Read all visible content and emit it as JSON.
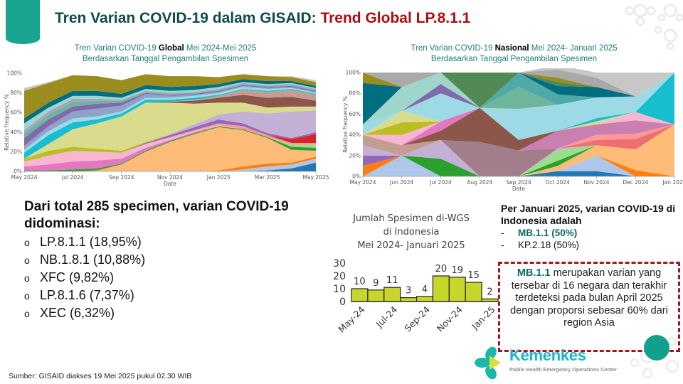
{
  "header": {
    "title_part1": "Tren Varian COVID-19 dalam GISAID: ",
    "title_part2": "Trend Global LP.8.1.1"
  },
  "global_chart": {
    "caption_pre": "Tren Varian COVID-19 ",
    "caption_bold": "Global",
    "caption_post": " Mei 2024-Mei 2025",
    "caption_line2": "Berdasarkan Tanggal Pengambilan Spesimen",
    "ylabel": "Relative frequency %",
    "xlabel": "Date",
    "yticks": [
      "0%",
      "20%",
      "40%",
      "60%",
      "80%",
      "100%"
    ],
    "xticks": [
      "May 2024",
      "Jul 2024",
      "Sep 2024",
      "Nov 2024",
      "Jan 2025",
      "Mar 2025",
      "May 2025"
    ]
  },
  "national_chart": {
    "caption_pre": "Tren Varian COVID-19 ",
    "caption_bold": "Nasional",
    "caption_post": " Mei 2024- Januari 2025",
    "caption_line2": "Berdasarkan Tanggal Pengambilan Spesimen",
    "ylabel": "Relative frequency %",
    "xlabel": "Date",
    "yticks": [
      "0%",
      "20%",
      "40%",
      "60%",
      "80%",
      "100%"
    ],
    "xticks": [
      "May 2024",
      "Jun 2024",
      "Jul 2024",
      "Aug 2024",
      "Sep 2024",
      "Oct 2024",
      "Nov 2024",
      "Dec 2024",
      "Jan 2025"
    ]
  },
  "summary": {
    "lead": "Dari total 285 specimen, varian COVID-19 didominasi:",
    "bullet": "o",
    "items": [
      "LP.8.1.1 (18,95%)",
      "NB.1.8.1 (10,88%)",
      "XFC (9,82%)",
      "LP.8.1.6 (7,37%)",
      "XEC (6,32%)"
    ]
  },
  "per_januari": {
    "lead": "Per Januari 2025, varian COVID-19 di Indonesia adalah",
    "dash": "-",
    "items": [
      {
        "label": "MB.1.1 (50%)",
        "highlight": true
      },
      {
        "label": "KP.2.18 (50%)",
        "highlight": false
      }
    ]
  },
  "infobox": {
    "highlight": "MB.1.1",
    "text": " merupakan varian yang tersebar di 16 negara dan terakhir terdeteksi pada bulan April 2025 dengan proporsi sebesar 60% dari region Asia"
  },
  "logo": {
    "brand": "Kemenkes",
    "subtitle": "Public Health Emergency Operations Center"
  },
  "source": "Sumber: GISAID diakses 19 Mei 2025 pukul 02.30 WIB",
  "colors": {
    "accent_teal": "#1aa591",
    "title_dark": "#114a4a",
    "title_red": "#b00b12",
    "caption_teal": "#1e7d7a",
    "bar_fill": "#c8d62b",
    "dashed_border": "#a3151e",
    "highlight_green": "#116b5e"
  },
  "chart_data": [
    {
      "type": "area",
      "title": "Tren Varian COVID-19 Global Mei 2024-Mei 2025",
      "xlabel": "Date",
      "ylabel": "Relative frequency %",
      "ylim": [
        0,
        100
      ],
      "stacked": true,
      "x": [
        "May 2024",
        "Jun 2024",
        "Jul 2024",
        "Aug 2024",
        "Sep 2024",
        "Oct 2024",
        "Nov 2024",
        "Dec 2024",
        "Jan 2025",
        "Feb 2025",
        "Mar 2025",
        "Apr 2025",
        "May 2025"
      ],
      "series": [
        {
          "name": "series-1",
          "color": "#1f77b4",
          "values": [
            0,
            0,
            0,
            0,
            0,
            0,
            0,
            0,
            0,
            0,
            1,
            3,
            9
          ]
        },
        {
          "name": "series-2",
          "color": "#aec7e8",
          "values": [
            0,
            0,
            0,
            0,
            0,
            0,
            0,
            0,
            0,
            2,
            4,
            4,
            4
          ]
        },
        {
          "name": "series-3",
          "color": "#ff7f0e",
          "values": [
            0,
            0,
            0,
            0,
            0,
            0,
            0,
            0,
            1,
            3,
            3,
            2,
            2
          ]
        },
        {
          "name": "series-4",
          "color": "#ffbb78",
          "values": [
            0,
            0,
            0,
            1,
            7,
            20,
            30,
            38,
            44,
            37,
            26,
            13,
            6
          ]
        },
        {
          "name": "series-5",
          "color": "#2ca02c",
          "values": [
            1,
            1,
            2,
            2,
            1,
            1,
            1,
            1,
            1,
            1,
            1,
            3,
            3
          ]
        },
        {
          "name": "series-6",
          "color": "#98df8a",
          "values": [
            0,
            0,
            0,
            0,
            0,
            0,
            0,
            0,
            0,
            0,
            0,
            2,
            3
          ]
        },
        {
          "name": "series-7",
          "color": "#e377c2",
          "values": [
            4,
            6,
            8,
            8,
            5,
            3,
            1,
            1,
            0,
            0,
            0,
            0,
            0
          ]
        },
        {
          "name": "series-8",
          "color": "#f7b6d2",
          "values": [
            5,
            9,
            11,
            9,
            6,
            4,
            2,
            1,
            1,
            0,
            0,
            0,
            0
          ]
        },
        {
          "name": "series-9",
          "color": "#ff9896",
          "values": [
            0,
            0,
            0,
            0,
            0,
            0,
            1,
            1,
            2,
            3,
            2,
            2,
            2
          ]
        },
        {
          "name": "series-10",
          "color": "#d62728",
          "values": [
            0,
            0,
            0,
            0,
            0,
            0,
            0,
            0,
            0,
            0,
            0,
            4,
            9
          ]
        },
        {
          "name": "series-11",
          "color": "#9467bd",
          "values": [
            0,
            0,
            0,
            0,
            0,
            1,
            2,
            3,
            4,
            3,
            2,
            1,
            2
          ]
        },
        {
          "name": "series-12",
          "color": "#c5b0d5",
          "values": [
            0,
            0,
            0,
            0,
            0,
            0,
            1,
            3,
            5,
            12,
            20,
            27,
            22
          ]
        },
        {
          "name": "series-13",
          "color": "#bcbd22",
          "values": [
            3,
            5,
            4,
            3,
            2,
            1,
            0,
            0,
            0,
            0,
            0,
            0,
            0
          ]
        },
        {
          "name": "series-14",
          "color": "#dbdb8d",
          "values": [
            0,
            7,
            18,
            26,
            35,
            40,
            32,
            21,
            12,
            9,
            6,
            5,
            4
          ]
        },
        {
          "name": "series-15",
          "color": "#8c564b",
          "values": [
            0,
            0,
            0,
            0,
            0,
            0,
            1,
            3,
            5,
            8,
            10,
            10,
            6
          ]
        },
        {
          "name": "series-16",
          "color": "#c49c94",
          "values": [
            0,
            0,
            0,
            0,
            0,
            0,
            0,
            1,
            2,
            5,
            6,
            7,
            6
          ]
        },
        {
          "name": "series-17",
          "color": "#17becf",
          "values": [
            6,
            9,
            7,
            4,
            3,
            3,
            2,
            2,
            1,
            1,
            1,
            1,
            1
          ]
        },
        {
          "name": "series-18",
          "color": "#9edae5",
          "values": [
            3,
            4,
            4,
            3,
            2,
            2,
            2,
            2,
            2,
            2,
            2,
            1,
            1
          ]
        },
        {
          "name": "series-19",
          "color": "#8fa3c8",
          "values": [
            4,
            5,
            7,
            8,
            6,
            4,
            2,
            1,
            1,
            1,
            1,
            1,
            1
          ]
        },
        {
          "name": "series-20",
          "color": "#7f6aae",
          "values": [
            8,
            7,
            5,
            5,
            3,
            1,
            1,
            1,
            1,
            1,
            1,
            1,
            1
          ]
        },
        {
          "name": "series-21",
          "color": "#6fb59b",
          "values": [
            5,
            5,
            5,
            3,
            2,
            1,
            1,
            1,
            1,
            1,
            1,
            1,
            1
          ]
        },
        {
          "name": "series-22",
          "color": "#a8a0cc",
          "values": [
            3,
            3,
            3,
            2,
            1,
            1,
            1,
            1,
            1,
            1,
            1,
            1,
            1
          ]
        },
        {
          "name": "series-23",
          "color": "#9fd6cb",
          "values": [
            7,
            4,
            3,
            3,
            2,
            2,
            2,
            2,
            2,
            1,
            1,
            1,
            1
          ]
        },
        {
          "name": "series-24",
          "color": "#006d80",
          "values": [
            5,
            5,
            5,
            5,
            4,
            4,
            4,
            4,
            3,
            3,
            3,
            2,
            2
          ]
        },
        {
          "name": "series-25",
          "color": "#9b8c1e",
          "values": [
            28,
            20,
            16,
            15,
            14,
            11,
            11,
            10,
            7,
            5,
            5,
            4,
            4
          ]
        },
        {
          "name": "series-26",
          "color": "#c7c7c7",
          "values": [
            3,
            1,
            0,
            0,
            0,
            0,
            0,
            0,
            0,
            0,
            0,
            1,
            2
          ]
        }
      ]
    },
    {
      "type": "area",
      "title": "Tren Varian COVID-19 Nasional Mei 2024- Januari 2025",
      "xlabel": "Date",
      "ylabel": "Relative frequency %",
      "ylim": [
        0,
        100
      ],
      "stacked": true,
      "x": [
        "May 2024",
        "Jun 2024",
        "Jul 2024",
        "Aug 2024",
        "Sep 2024",
        "Oct 2024",
        "Nov 2024",
        "Dec 2024",
        "Jan 2025"
      ],
      "series": [
        {
          "name": "series-1",
          "color": "#1f77b4",
          "values": [
            0,
            0,
            0,
            0,
            0,
            5,
            5,
            0,
            0
          ]
        },
        {
          "name": "series-2",
          "color": "#aec7e8",
          "values": [
            0,
            20,
            0,
            0,
            0,
            0,
            15,
            0,
            0
          ]
        },
        {
          "name": "series-3",
          "color": "#ff7f0e",
          "values": [
            10,
            0,
            0,
            0,
            0,
            0,
            0,
            6,
            0
          ]
        },
        {
          "name": "series-4",
          "color": "#ffbb78",
          "values": [
            0,
            0,
            0,
            0,
            0,
            5,
            10,
            20,
            50
          ]
        },
        {
          "name": "series-5",
          "color": "#2ca02c",
          "values": [
            0,
            0,
            17,
            0,
            0,
            5,
            0,
            0,
            0
          ]
        },
        {
          "name": "series-6",
          "color": "#98df8a",
          "values": [
            0,
            0,
            0,
            0,
            0,
            10,
            0,
            0,
            0
          ]
        },
        {
          "name": "series-7",
          "color": "#9467bd",
          "values": [
            10,
            0,
            0,
            0,
            0,
            0,
            0,
            0,
            0
          ]
        },
        {
          "name": "series-8",
          "color": "#c5b0d5",
          "values": [
            10,
            0,
            18,
            0,
            0,
            2,
            0,
            0,
            0
          ]
        },
        {
          "name": "series-9",
          "color": "#a27d8c",
          "values": [
            0,
            0,
            0,
            33,
            25,
            0,
            0,
            0,
            0
          ]
        },
        {
          "name": "series-10",
          "color": "#ed6f6f",
          "values": [
            0,
            0,
            0,
            0,
            0,
            0,
            5,
            10,
            0
          ]
        },
        {
          "name": "series-11",
          "color": "#ff9896",
          "values": [
            0,
            0,
            0,
            0,
            0,
            0,
            5,
            5,
            0
          ]
        },
        {
          "name": "series-12",
          "color": "#c97fb0",
          "values": [
            0,
            0,
            0,
            0,
            0,
            17,
            10,
            13,
            0
          ]
        },
        {
          "name": "series-13",
          "color": "#c49c94",
          "values": [
            10,
            10,
            0,
            0,
            0,
            0,
            0,
            0,
            0
          ]
        },
        {
          "name": "series-14",
          "color": "#8c564b",
          "values": [
            0,
            0,
            9,
            33,
            10,
            0,
            0,
            0,
            0
          ]
        },
        {
          "name": "series-15",
          "color": "#e377c2",
          "values": [
            0,
            0,
            9,
            0,
            0,
            0,
            0,
            0,
            0
          ]
        },
        {
          "name": "series-16",
          "color": "#f7b6d2",
          "values": [
            0,
            10,
            0,
            0,
            0,
            0,
            0,
            8,
            0
          ]
        },
        {
          "name": "series-17",
          "color": "#bcbd22",
          "values": [
            0,
            12,
            0,
            0,
            0,
            0,
            0,
            0,
            0
          ]
        },
        {
          "name": "series-18",
          "color": "#dbdb8d",
          "values": [
            0,
            11,
            0,
            0,
            0,
            0,
            3,
            0,
            0
          ]
        },
        {
          "name": "series-19",
          "color": "#17becf",
          "values": [
            0,
            0,
            0,
            0,
            0,
            0,
            3,
            0,
            50
          ]
        },
        {
          "name": "series-20",
          "color": "#9edae5",
          "values": [
            10,
            0,
            27,
            0,
            30,
            25,
            20,
            15,
            0
          ]
        },
        {
          "name": "series-21",
          "color": "#7f6aae",
          "values": [
            0,
            0,
            9,
            0,
            0,
            0,
            0,
            0,
            0
          ]
        },
        {
          "name": "series-22",
          "color": "#6fb59b",
          "values": [
            0,
            0,
            0,
            0,
            21,
            0,
            0,
            0,
            0
          ]
        },
        {
          "name": "series-23",
          "color": "#4fa9a6",
          "values": [
            0,
            0,
            0,
            0,
            14,
            10,
            0,
            0,
            0
          ]
        },
        {
          "name": "series-24",
          "color": "#9fd6cb",
          "values": [
            0,
            23,
            11,
            0,
            0,
            0,
            0,
            0,
            0
          ]
        },
        {
          "name": "series-25",
          "color": "#006d80",
          "values": [
            40,
            0,
            0,
            0,
            0,
            8,
            10,
            0,
            0
          ]
        },
        {
          "name": "series-26",
          "color": "#528a56",
          "values": [
            0,
            0,
            0,
            34,
            0,
            4,
            0,
            0,
            0
          ]
        },
        {
          "name": "series-27",
          "color": "#9b8c1e",
          "values": [
            10,
            0,
            0,
            0,
            0,
            4,
            0,
            0,
            0
          ]
        },
        {
          "name": "series-28",
          "color": "#a9a9a9",
          "values": [
            0,
            14,
            0,
            0,
            0,
            8,
            9,
            0,
            0
          ]
        },
        {
          "name": "series-29",
          "color": "#c7c7c7",
          "values": [
            0,
            0,
            0,
            0,
            0,
            4,
            5,
            23,
            0
          ]
        }
      ]
    },
    {
      "type": "bar",
      "title": "Jumlah Spesimen di-WGS di Indonesia Mei 2024- Januari 2025",
      "title_lines": [
        "Jumlah Spesimen di-WGS",
        "di Indonesia",
        "Mei 2024- Januari 2025"
      ],
      "categories": [
        "May-24",
        "Jun-24",
        "Jul-24",
        "Aug-24",
        "Sep-24",
        "Oct-24",
        "Nov-24",
        "Dec-24",
        "Jan-25"
      ],
      "xtick_labels": [
        "May-24",
        "Jul-24",
        "Sep-24",
        "Nov-24",
        "Jan-25"
      ],
      "values": [
        10,
        9,
        11,
        3,
        4,
        20,
        19,
        15,
        2
      ],
      "yticks": [
        "0",
        "10",
        "20",
        "30"
      ],
      "ylim": [
        0,
        30
      ],
      "xlabel": "",
      "ylabel": "",
      "bar_color": "#c8d62b",
      "data_labels": true
    }
  ]
}
